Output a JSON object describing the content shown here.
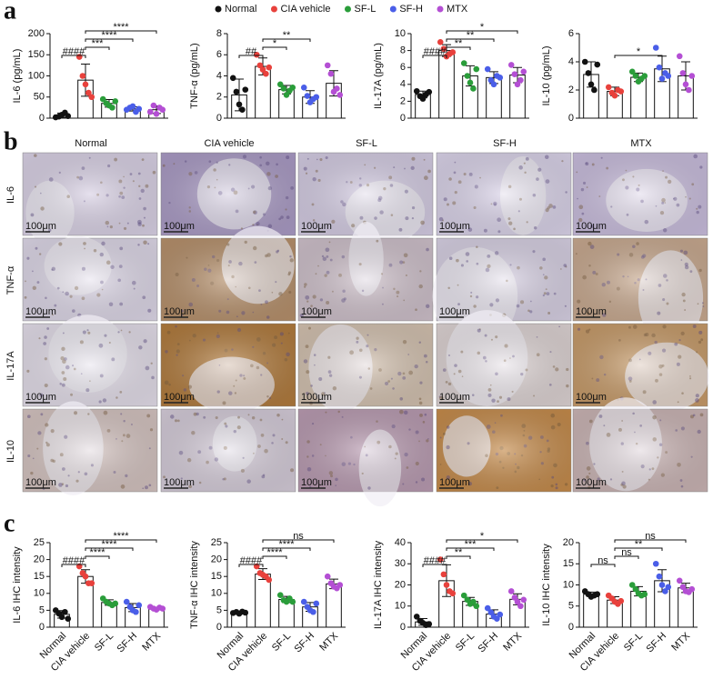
{
  "panel_labels": [
    "a",
    "b",
    "c"
  ],
  "legend": [
    {
      "name": "Normal",
      "color": "#111111"
    },
    {
      "name": "CIA vehicle",
      "color": "#e8413c"
    },
    {
      "name": "SF-L",
      "color": "#2a9d3a"
    },
    {
      "name": "SF-H",
      "color": "#4a5ee8"
    },
    {
      "name": "MTX",
      "color": "#b44fd4"
    }
  ],
  "image_grid": {
    "columns": [
      "Normal",
      "CIA vehicle",
      "SF-L",
      "SF-H",
      "MTX"
    ],
    "rows": [
      "IL-6",
      "TNF-α",
      "IL-17A",
      "IL-10"
    ],
    "scale_bar": "100μm"
  },
  "chart_data": [
    {
      "type": "bar",
      "ylabel": "IL-6 (pg/mL)",
      "ylim": [
        0,
        200
      ],
      "yticks": [
        0,
        50,
        100,
        150,
        200
      ],
      "values": [
        7,
        90,
        35,
        22,
        20
      ],
      "errors": [
        5,
        38,
        9,
        5,
        9
      ],
      "points": [
        [
          2,
          4,
          8,
          13,
          5
        ],
        [
          145,
          100,
          80,
          60,
          50
        ],
        [
          45,
          35,
          30,
          25,
          40
        ],
        [
          20,
          25,
          28,
          15,
          22
        ],
        [
          15,
          30,
          10,
          25,
          20
        ]
      ],
      "significance": [
        {
          "from": "Normal",
          "to": "CIA vehicle",
          "label": "####"
        },
        {
          "from": "CIA vehicle",
          "to": "SF-L",
          "label": "***"
        },
        {
          "from": "CIA vehicle",
          "to": "SF-H",
          "label": "****"
        },
        {
          "from": "CIA vehicle",
          "to": "MTX",
          "label": "****"
        }
      ]
    },
    {
      "type": "bar",
      "ylabel": "TNF-α (pg/mL)",
      "ylim": [
        0,
        8
      ],
      "yticks": [
        0,
        2,
        4,
        6,
        8
      ],
      "values": [
        2.2,
        4.9,
        2.7,
        2.0,
        3.3
      ],
      "errors": [
        1.5,
        0.8,
        0.4,
        0.6,
        1.2
      ],
      "points": [
        [
          3.8,
          2.5,
          1.3,
          0.8,
          2.7
        ],
        [
          6.0,
          5.0,
          4.6,
          4.2,
          4.8
        ],
        [
          3.2,
          2.8,
          2.2,
          2.6,
          2.9
        ],
        [
          2.9,
          2.1,
          1.5,
          1.8,
          2.0
        ],
        [
          5.0,
          4.2,
          2.5,
          2.8,
          2.2
        ]
      ],
      "significance": [
        {
          "from": "Normal",
          "to": "CIA vehicle",
          "label": "##"
        },
        {
          "from": "CIA vehicle",
          "to": "SF-L",
          "label": "*"
        },
        {
          "from": "CIA vehicle",
          "to": "SF-H",
          "label": "**"
        }
      ]
    },
    {
      "type": "bar",
      "ylabel": "IL-17A (pg/mL)",
      "ylim": [
        0,
        10
      ],
      "yticks": [
        0,
        2,
        4,
        6,
        8,
        10
      ],
      "values": [
        2.8,
        8.0,
        5.0,
        4.8,
        5.1
      ],
      "errors": [
        0.4,
        0.7,
        1.2,
        0.7,
        0.9
      ],
      "points": [
        [
          3.2,
          2.6,
          2.3,
          2.8,
          3.1
        ],
        [
          9.0,
          8.2,
          7.3,
          7.6,
          7.8
        ],
        [
          6.5,
          5.0,
          4.2,
          3.5,
          5.8
        ],
        [
          5.8,
          4.5,
          4.0,
          5.0,
          4.8
        ],
        [
          6.3,
          5.2,
          4.0,
          4.5,
          5.5
        ]
      ],
      "significance": [
        {
          "from": "Normal",
          "to": "CIA vehicle",
          "label": "####"
        },
        {
          "from": "CIA vehicle",
          "to": "SF-L",
          "label": "**"
        },
        {
          "from": "CIA vehicle",
          "to": "SF-H",
          "label": "**"
        },
        {
          "from": "CIA vehicle",
          "to": "MTX",
          "label": "*"
        }
      ]
    },
    {
      "type": "bar",
      "ylabel": "IL-10 (pg/mL)",
      "ylim": [
        0,
        6
      ],
      "yticks": [
        0,
        2,
        4,
        6
      ],
      "values": [
        3.1,
        1.9,
        2.9,
        3.5,
        3.0
      ],
      "errors": [
        0.9,
        0.3,
        0.3,
        0.9,
        1.0
      ],
      "points": [
        [
          4.0,
          3.2,
          2.4,
          2.0,
          3.8
        ],
        [
          2.2,
          1.8,
          1.6,
          2.0,
          1.9
        ],
        [
          3.3,
          3.0,
          2.6,
          2.8,
          3.0
        ],
        [
          5.0,
          3.6,
          2.8,
          3.2,
          3.0
        ],
        [
          4.4,
          3.2,
          2.4,
          2.0,
          3.0
        ]
      ],
      "significance": [
        {
          "from": "CIA vehicle",
          "to": "SF-H",
          "label": "*"
        }
      ]
    },
    {
      "type": "bar",
      "ylabel": "IL-6 IHC intensity",
      "ylim": [
        0,
        25
      ],
      "yticks": [
        0,
        5,
        10,
        15,
        20,
        25
      ],
      "categories": [
        "Normal",
        "CIA vehicle",
        "SF-L",
        "SF-H",
        "MTX"
      ],
      "values": [
        3.8,
        15,
        7.3,
        5.8,
        5.5
      ],
      "errors": [
        1.1,
        2.0,
        0.8,
        1.2,
        0.4
      ],
      "points": [
        [
          5,
          4,
          3,
          4.5,
          2.5
        ],
        [
          18,
          16,
          15,
          13,
          13
        ],
        [
          8.5,
          7.5,
          7,
          6.5,
          7
        ],
        [
          7.5,
          6,
          5,
          4.5,
          6.5
        ],
        [
          6,
          5.5,
          5.2,
          5.8,
          5.5
        ]
      ],
      "significance": [
        {
          "from": "Normal",
          "to": "CIA vehicle",
          "label": "####"
        },
        {
          "from": "CIA vehicle",
          "to": "SF-L",
          "label": "****"
        },
        {
          "from": "CIA vehicle",
          "to": "SF-H",
          "label": "****"
        },
        {
          "from": "CIA vehicle",
          "to": "MTX",
          "label": "****"
        }
      ]
    },
    {
      "type": "bar",
      "ylabel": "TNF-α IHC intensity",
      "ylim": [
        0,
        25
      ],
      "yticks": [
        0,
        5,
        10,
        15,
        20,
        25
      ],
      "categories": [
        "Normal",
        "CIA vehicle",
        "SF-L",
        "SF-H",
        "MTX"
      ],
      "values": [
        4.3,
        15.7,
        8.2,
        6.0,
        12.8
      ],
      "errors": [
        0.3,
        1.6,
        0.9,
        1.3,
        1.4
      ],
      "points": [
        [
          4.2,
          4.5,
          4.0,
          4.6,
          4.3
        ],
        [
          18,
          16,
          15.5,
          15,
          14
        ],
        [
          9.5,
          8,
          7.5,
          8.5,
          7.5
        ],
        [
          7.5,
          6,
          5,
          4.5,
          7
        ],
        [
          15,
          13,
          12,
          11.5,
          12.5
        ]
      ],
      "significance": [
        {
          "from": "Normal",
          "to": "CIA vehicle",
          "label": "####"
        },
        {
          "from": "CIA vehicle",
          "to": "SF-L",
          "label": "****"
        },
        {
          "from": "CIA vehicle",
          "to": "SF-H",
          "label": "****"
        },
        {
          "from": "CIA vehicle",
          "to": "MTX",
          "label": "ns"
        }
      ]
    },
    {
      "type": "bar",
      "ylabel": "IL-17A IHC intensity",
      "ylim": [
        0,
        40
      ],
      "yticks": [
        0,
        10,
        20,
        30,
        40
      ],
      "categories": [
        "Normal",
        "CIA vehicle",
        "SF-L",
        "SF-H",
        "MTX"
      ],
      "values": [
        2.5,
        22,
        12.2,
        6.2,
        13.2
      ],
      "errors": [
        1.6,
        7.5,
        1.9,
        2.0,
        2.6
      ],
      "points": [
        [
          5,
          3,
          2,
          1,
          1.5
        ],
        [
          32,
          25,
          20,
          17,
          16
        ],
        [
          15,
          13,
          11,
          12,
          10
        ],
        [
          9,
          7,
          5,
          4,
          6
        ],
        [
          17,
          14,
          12,
          10,
          13
        ]
      ],
      "significance": [
        {
          "from": "Normal",
          "to": "CIA vehicle",
          "label": "####"
        },
        {
          "from": "CIA vehicle",
          "to": "SF-L",
          "label": "**"
        },
        {
          "from": "CIA vehicle",
          "to": "SF-H",
          "label": "***"
        },
        {
          "from": "CIA vehicle",
          "to": "MTX",
          "label": "*"
        }
      ]
    },
    {
      "type": "bar",
      "ylabel": "IL-10 IHC intensity",
      "ylim": [
        0,
        20
      ],
      "yticks": [
        0,
        5,
        10,
        15,
        20
      ],
      "categories": [
        "Normal",
        "CIA vehicle",
        "SF-L",
        "SF-H",
        "MTX"
      ],
      "values": [
        7.8,
        6.4,
        8.5,
        11,
        9.3
      ],
      "errors": [
        0.5,
        0.8,
        1.1,
        2.6,
        1.1
      ],
      "points": [
        [
          8.5,
          7.8,
          7.2,
          7.5,
          7.8
        ],
        [
          7.5,
          6.8,
          6,
          5.5,
          6.2
        ],
        [
          10,
          9,
          8,
          7.5,
          7.8
        ],
        [
          15,
          12,
          10,
          8.5,
          9.5
        ],
        [
          11,
          9.5,
          8.5,
          8.3,
          9
        ]
      ],
      "significance": [
        {
          "from": "Normal",
          "to": "CIA vehicle",
          "label": "ns"
        },
        {
          "from": "CIA vehicle",
          "to": "SF-L",
          "label": "ns"
        },
        {
          "from": "CIA vehicle",
          "to": "SF-H",
          "label": "**"
        },
        {
          "from": "CIA vehicle",
          "to": "MTX",
          "label": "ns"
        }
      ]
    }
  ]
}
